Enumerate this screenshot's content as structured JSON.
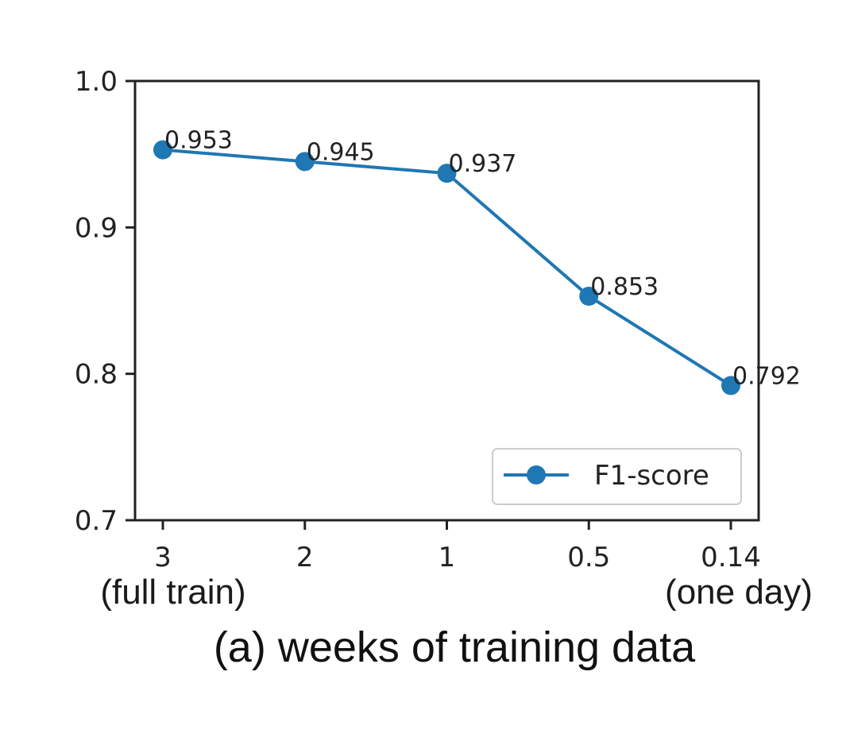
{
  "chart_data": {
    "type": "line",
    "categories": [
      "3",
      "2",
      "1",
      "0.5",
      "0.14"
    ],
    "category_sublabels": [
      "(full train)",
      "",
      "",
      "",
      "(one day)"
    ],
    "series": [
      {
        "name": "F1-score",
        "values": [
          0.953,
          0.945,
          0.937,
          0.853,
          0.792
        ],
        "data_labels": [
          "0.953",
          "0.945",
          "0.937",
          "0.853",
          "0.792"
        ],
        "color": "#1f77b4",
        "marker": "circle"
      }
    ],
    "yticks": [
      "0.7",
      "0.8",
      "0.9",
      "1.0"
    ],
    "ylim": [
      0.7,
      1.0
    ],
    "legend": {
      "label": "F1-score",
      "placement": "lower-right"
    },
    "caption": "(a) weeks of training data",
    "grid": false
  }
}
